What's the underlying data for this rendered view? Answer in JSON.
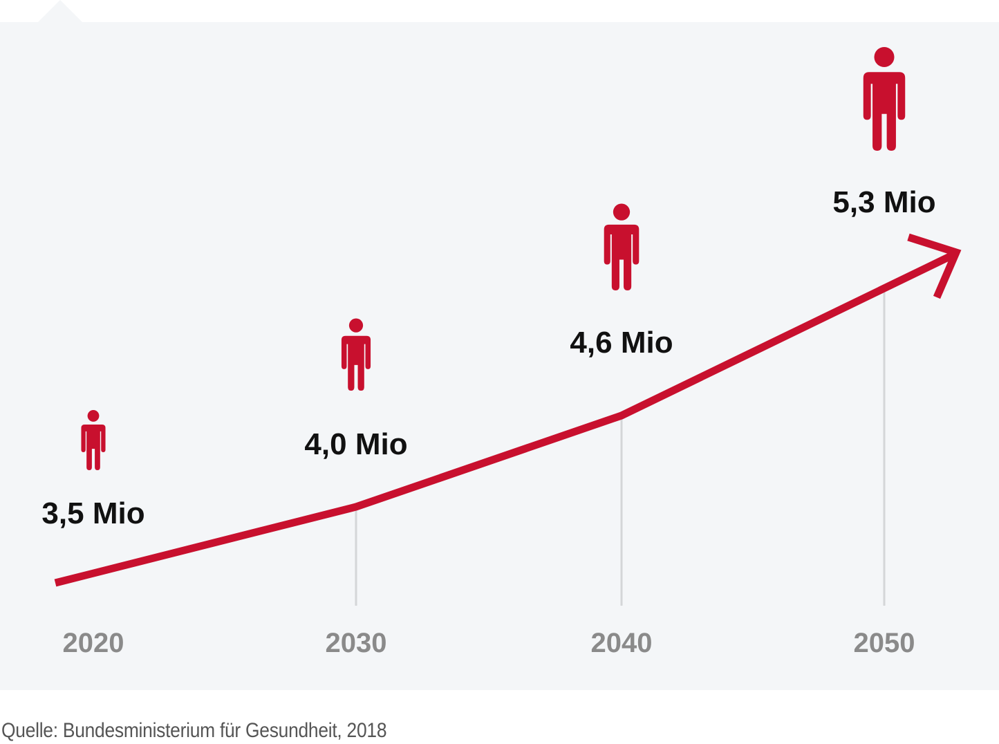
{
  "chart_data": {
    "type": "line",
    "x": [
      "2020",
      "2030",
      "2040",
      "2050"
    ],
    "series": [
      {
        "values": [
          3.5,
          4.0,
          4.6,
          5.3
        ]
      }
    ],
    "data_labels": [
      "3,5 Mio",
      "4,0 Mio",
      "4,6 Mio",
      "5,3 Mio"
    ],
    "tick_labels": [
      "2020",
      "2030",
      "2040",
      "2050"
    ],
    "icon": "person-icon",
    "line_end": "arrow",
    "colors": {
      "line": "#c8102e",
      "icon": "#c8102e",
      "gridline": "#d4d6d8",
      "background": "#f4f6f8"
    },
    "grid": "vertical guides at 2030, 2040, 2050"
  },
  "source": "Quelle: Bundesministerium für Gesundheit, 2018"
}
